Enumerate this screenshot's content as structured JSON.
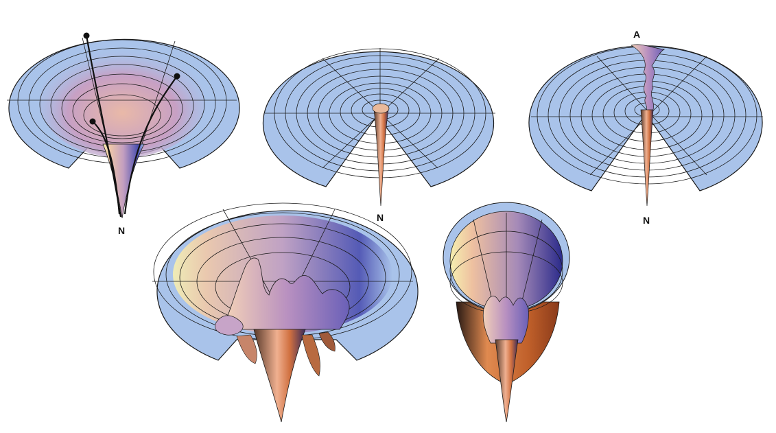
{
  "panels": [
    {
      "id": "panel-1",
      "label": "N"
    },
    {
      "id": "panel-2",
      "label": "N"
    },
    {
      "id": "panel-3",
      "label_top": "A",
      "label": "N"
    },
    {
      "id": "panel-4"
    },
    {
      "id": "panel-5"
    }
  ],
  "colors": {
    "disc": "#a9c3ea",
    "funnel_warm": "#e8a070",
    "funnel_mid": "#c49bb8",
    "funnel_cool": "#3a3a9a",
    "highlight_yellow": "#f6f0b0",
    "line": "#1a1a1a"
  }
}
